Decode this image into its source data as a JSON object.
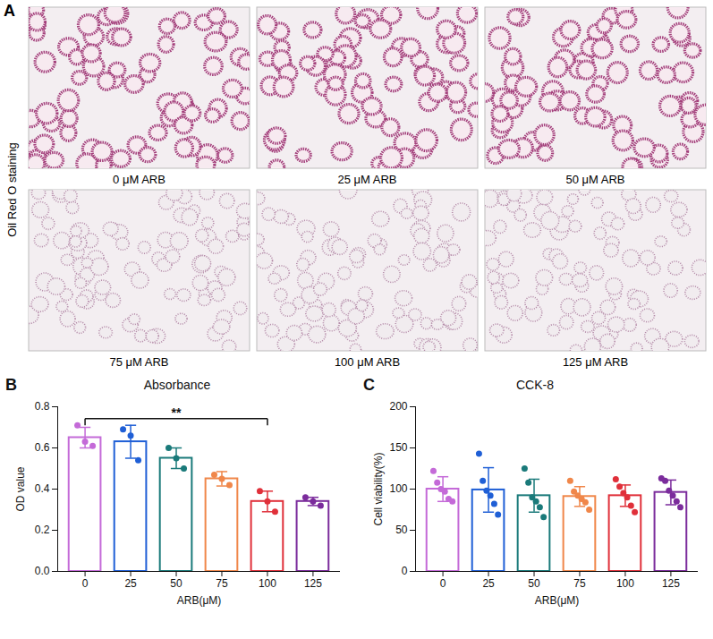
{
  "panel_a": {
    "letter": "A",
    "side_label": "Oil Red O staining",
    "images": [
      "0 μM ARB",
      "25 μM ARB",
      "50 μM ARB",
      "75 μM ARB",
      "100 μM ARB",
      "125 μM ARB"
    ]
  },
  "chart_data": [
    {
      "type": "bar",
      "letter": "B",
      "title": "Absorbance",
      "x_label": "ARB(μM)",
      "y_label": "OD value",
      "categories": [
        "0",
        "25",
        "50",
        "75",
        "100",
        "125"
      ],
      "values": [
        0.65,
        0.63,
        0.55,
        0.45,
        0.34,
        0.34
      ],
      "errors": [
        0.05,
        0.08,
        0.05,
        0.035,
        0.05,
        0.02
      ],
      "points": [
        [
          0.71,
          0.63,
          0.61
        ],
        [
          0.69,
          0.66,
          0.54
        ],
        [
          0.6,
          0.55,
          0.5
        ],
        [
          0.47,
          0.45,
          0.42
        ],
        [
          0.39,
          0.34,
          0.29
        ],
        [
          0.36,
          0.34,
          0.32
        ]
      ],
      "colors": [
        "#c46ad8",
        "#1f5fd6",
        "#1a7a7a",
        "#f0874a",
        "#e0303a",
        "#7b2c9c"
      ],
      "ylim": [
        0,
        0.8
      ],
      "yticks": [
        {
          "value": 0,
          "label": "0.0"
        },
        {
          "value": 0.2,
          "label": "0.2"
        },
        {
          "value": 0.4,
          "label": "0.4"
        },
        {
          "value": 0.6,
          "label": "0.6"
        },
        {
          "value": 0.8,
          "label": "0.8"
        }
      ],
      "significance": [
        {
          "from": "0",
          "to": "100",
          "label": "**"
        }
      ]
    },
    {
      "type": "bar",
      "letter": "C",
      "title": "CCK-8",
      "x_label": "ARB(μM)",
      "y_label": "Cell viability(%)",
      "categories": [
        "0",
        "25",
        "50",
        "75",
        "100",
        "125"
      ],
      "values": [
        100,
        99,
        92,
        91,
        92,
        96
      ],
      "errors": [
        15,
        27,
        20,
        12,
        13,
        15
      ],
      "points": [
        [
          122,
          108,
          100,
          97,
          88,
          85
        ],
        [
          143,
          110,
          98,
          92,
          82,
          69
        ],
        [
          125,
          108,
          90,
          85,
          78,
          66
        ],
        [
          110,
          97,
          92,
          88,
          84,
          75
        ],
        [
          112,
          103,
          95,
          90,
          80,
          72
        ],
        [
          113,
          110,
          98,
          92,
          85,
          78
        ]
      ],
      "colors": [
        "#c46ad8",
        "#1f5fd6",
        "#1a7a7a",
        "#f0874a",
        "#e0303a",
        "#7b2c9c"
      ],
      "ylim": [
        0,
        200
      ],
      "yticks": [
        0,
        50,
        100,
        150,
        200
      ]
    }
  ]
}
